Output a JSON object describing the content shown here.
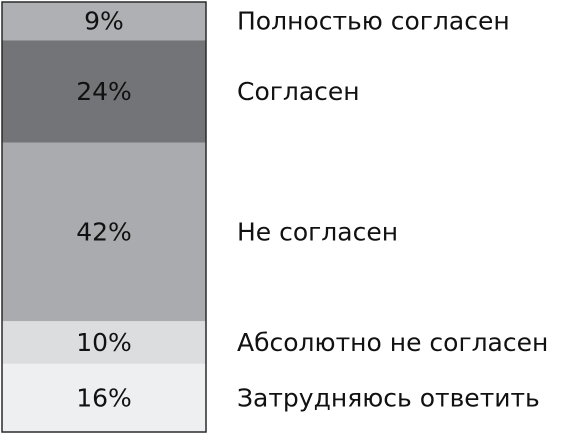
{
  "chart_data": {
    "type": "bar",
    "stacked": true,
    "orientation": "vertical",
    "unit": "%",
    "categories": [
      "Полностью согласен",
      "Согласен",
      "Не согласен",
      "Абсолютно не согласен",
      "Затрудняюсь ответить"
    ],
    "values": [
      9,
      24,
      42,
      10,
      16
    ],
    "value_labels": [
      "9%",
      "24%",
      "42%",
      "10%",
      "16%"
    ],
    "colors": [
      "#aeb0b3",
      "#737477",
      "#a9abae",
      "#dcdddf",
      "#eeeff0"
    ],
    "title": "",
    "xlabel": "",
    "ylabel": "",
    "legend": "right",
    "grid": false
  }
}
